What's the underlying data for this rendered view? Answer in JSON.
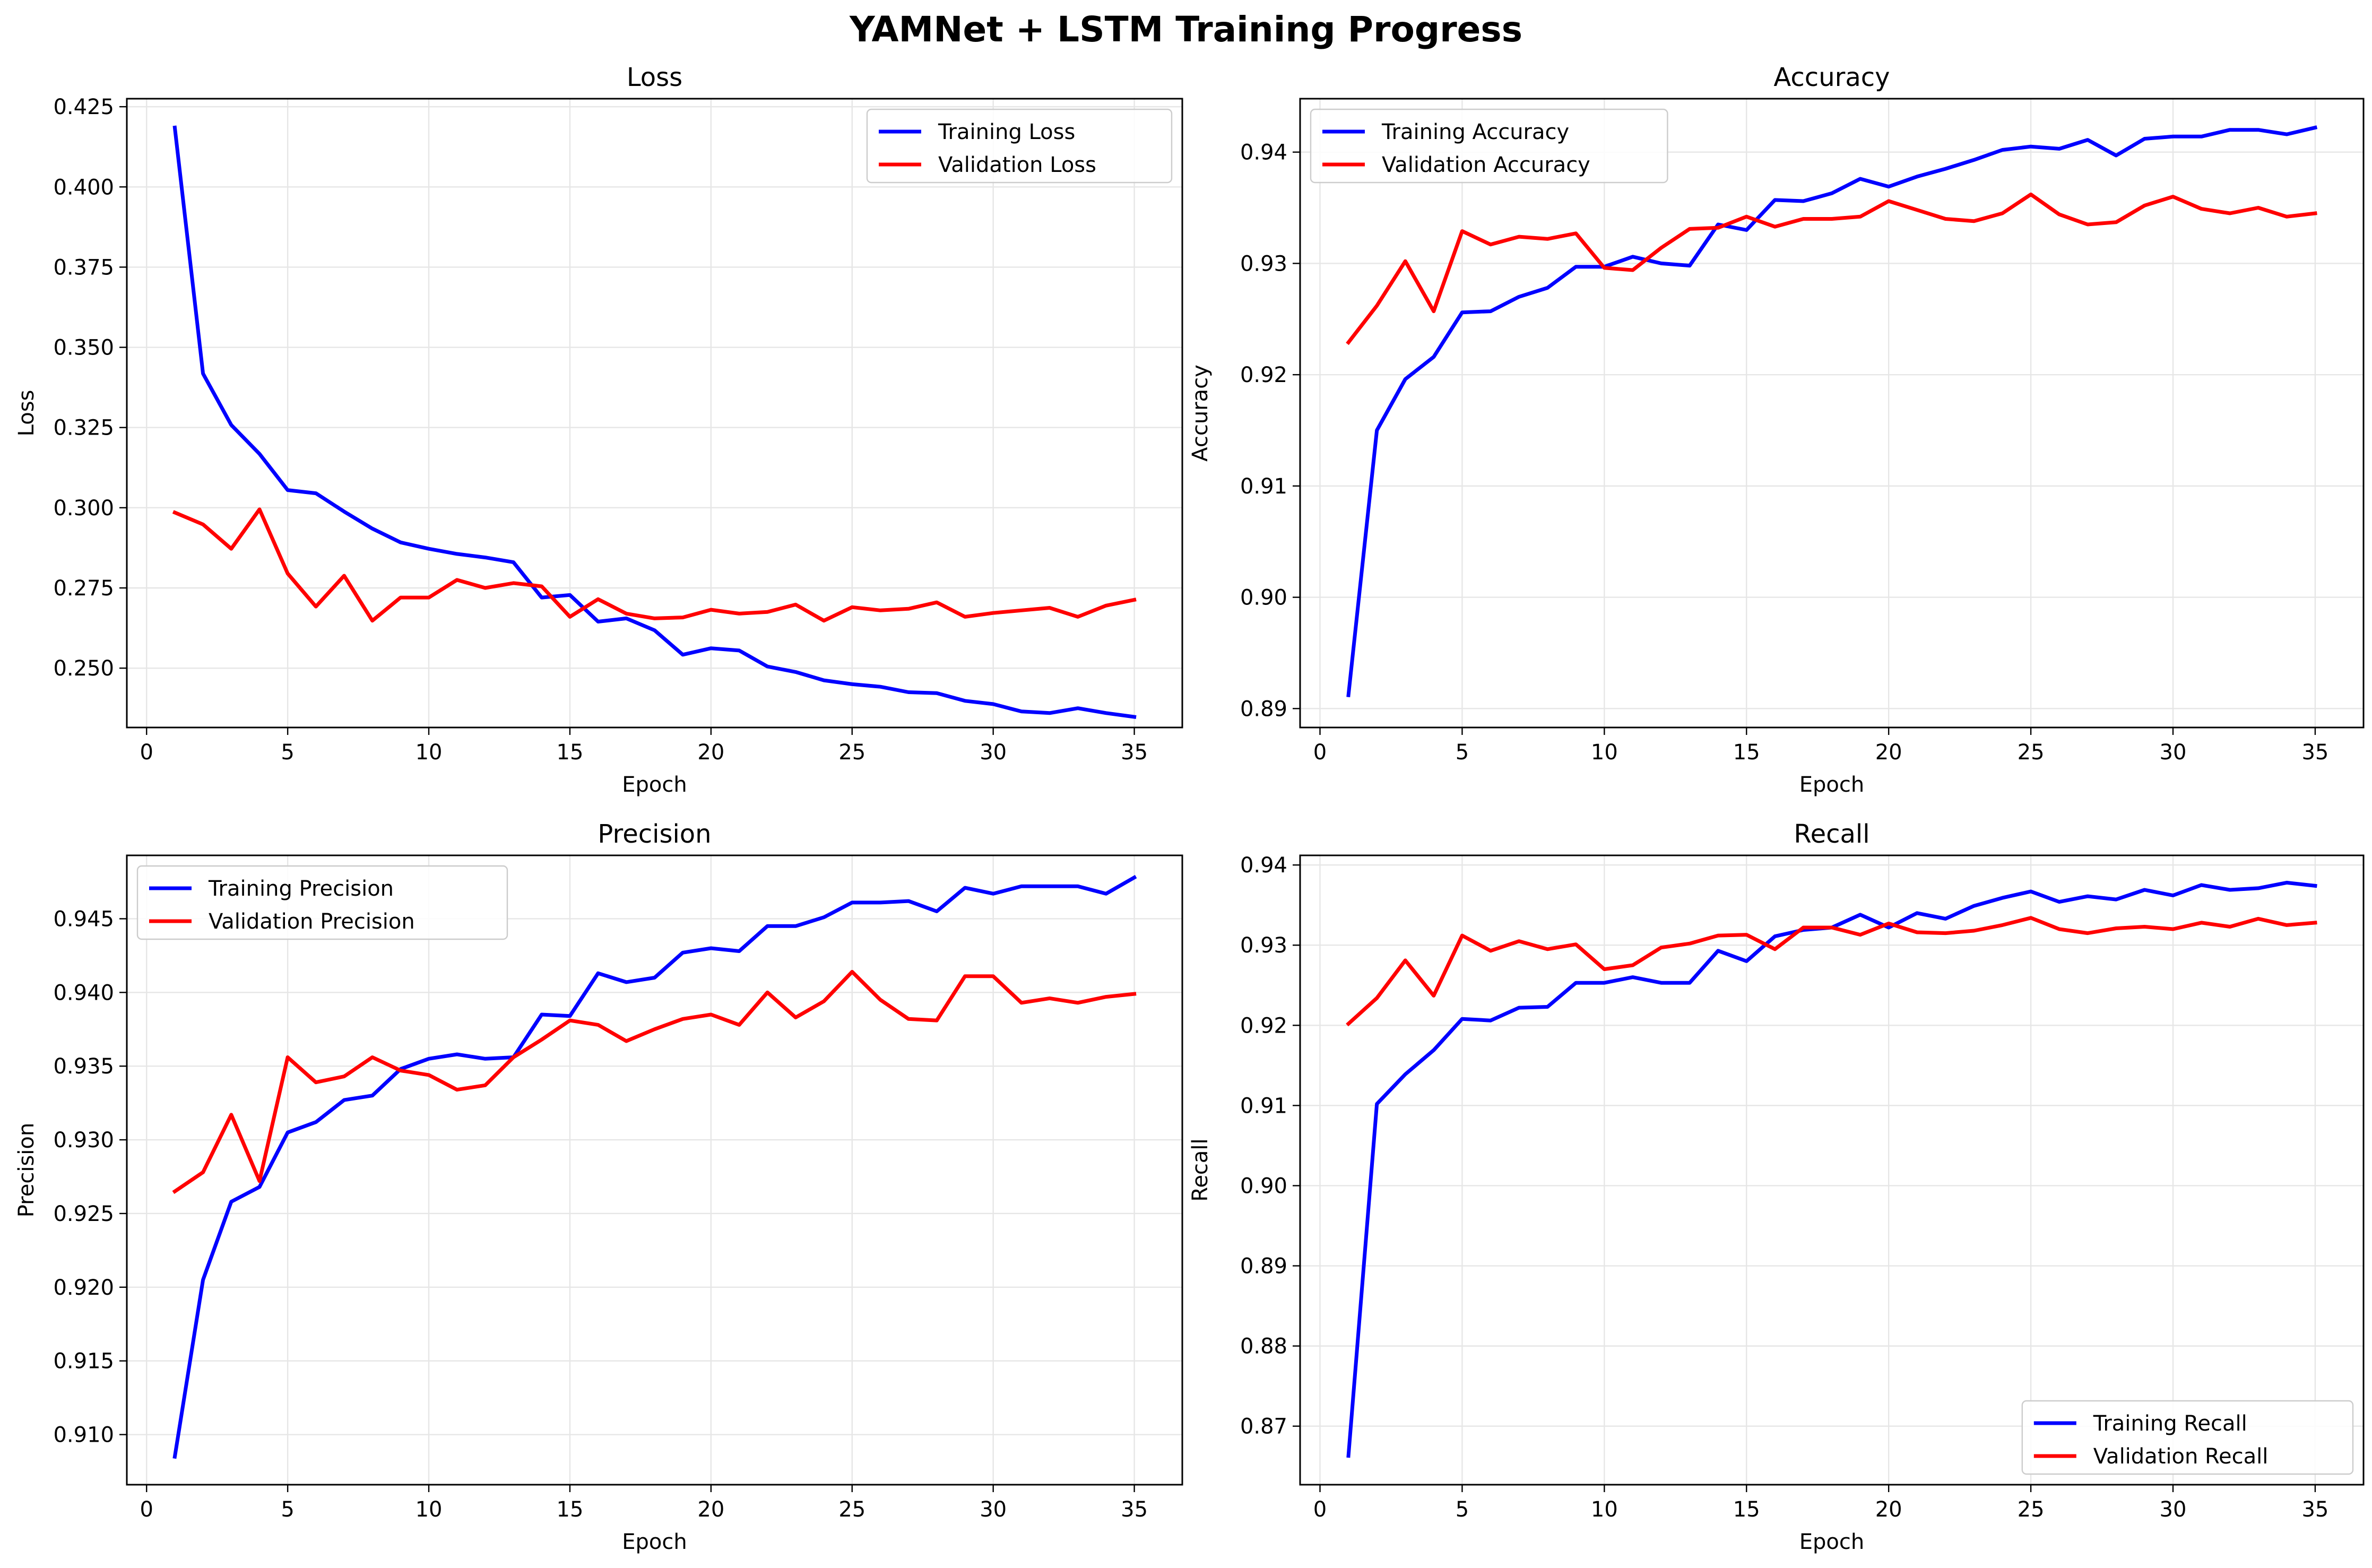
{
  "figure": {
    "title": "YAMNet + LSTM Training Progress"
  },
  "colors": {
    "training": "#0000ff",
    "validation": "#ff0000",
    "grid": "#e6e6e6",
    "axis": "#000000"
  },
  "chart_data": [
    {
      "type": "line",
      "title": "Loss",
      "xlabel": "Epoch",
      "ylabel": "Loss",
      "xlim": [
        -0.7,
        36.7
      ],
      "ylim": [
        0.2315,
        0.4275
      ],
      "xticks": [
        0,
        5,
        10,
        15,
        20,
        25,
        30,
        35
      ],
      "yticks": [
        0.25,
        0.275,
        0.3,
        0.325,
        0.35,
        0.375,
        0.4,
        0.425
      ],
      "ytick_labels": [
        "0.250",
        "0.275",
        "0.300",
        "0.325",
        "0.350",
        "0.375",
        "0.400",
        "0.425"
      ],
      "grid": true,
      "legend_position": "upper right",
      "x": [
        1,
        2,
        3,
        4,
        5,
        6,
        7,
        8,
        9,
        10,
        11,
        12,
        13,
        14,
        15,
        16,
        17,
        18,
        19,
        20,
        21,
        22,
        23,
        24,
        25,
        26,
        27,
        28,
        29,
        30,
        31,
        32,
        33,
        34,
        35
      ],
      "series": [
        {
          "name": "Training Loss",
          "color": "#0000ff",
          "values": [
            0.4185,
            0.3418,
            0.3258,
            0.3168,
            0.3055,
            0.3045,
            0.2988,
            0.2935,
            0.2892,
            0.2872,
            0.2856,
            0.2845,
            0.283,
            0.272,
            0.2728,
            0.2645,
            0.2655,
            0.2618,
            0.2542,
            0.2562,
            0.2555,
            0.2505,
            0.2488,
            0.2462,
            0.245,
            0.2442,
            0.2425,
            0.2422,
            0.2398,
            0.2388,
            0.2365,
            0.236,
            0.2375,
            0.236,
            0.2348
          ]
        },
        {
          "name": "Validation Loss",
          "color": "#ff0000",
          "values": [
            0.2985,
            0.2948,
            0.2872,
            0.2995,
            0.2795,
            0.2692,
            0.2788,
            0.2648,
            0.272,
            0.272,
            0.2775,
            0.275,
            0.2765,
            0.2755,
            0.266,
            0.2715,
            0.267,
            0.2655,
            0.2658,
            0.2682,
            0.267,
            0.2675,
            0.2698,
            0.2648,
            0.269,
            0.268,
            0.2685,
            0.2705,
            0.266,
            0.2672,
            0.268,
            0.2688,
            0.266,
            0.2695,
            0.2713
          ]
        }
      ]
    },
    {
      "type": "line",
      "title": "Accuracy",
      "xlabel": "Epoch",
      "ylabel": "Accuracy",
      "xlim": [
        -0.7,
        36.7
      ],
      "ylim": [
        0.8883,
        0.9448
      ],
      "xticks": [
        0,
        5,
        10,
        15,
        20,
        25,
        30,
        35
      ],
      "yticks": [
        0.89,
        0.9,
        0.91,
        0.92,
        0.93,
        0.94
      ],
      "ytick_labels": [
        "0.89",
        "0.90",
        "0.91",
        "0.92",
        "0.93",
        "0.94"
      ],
      "grid": true,
      "legend_position": "upper left",
      "x": [
        1,
        2,
        3,
        4,
        5,
        6,
        7,
        8,
        9,
        10,
        11,
        12,
        13,
        14,
        15,
        16,
        17,
        18,
        19,
        20,
        21,
        22,
        23,
        24,
        25,
        26,
        27,
        28,
        29,
        30,
        31,
        32,
        33,
        34,
        35
      ],
      "series": [
        {
          "name": "Training Accuracy",
          "color": "#0000ff",
          "values": [
            0.8912,
            0.915,
            0.9196,
            0.9216,
            0.9256,
            0.9257,
            0.927,
            0.9278,
            0.9297,
            0.9297,
            0.9306,
            0.93,
            0.9298,
            0.9335,
            0.933,
            0.9357,
            0.9356,
            0.9363,
            0.9376,
            0.9369,
            0.9378,
            0.9385,
            0.9393,
            0.9402,
            0.9405,
            0.9403,
            0.9411,
            0.9397,
            0.9412,
            0.9414,
            0.9414,
            0.942,
            0.942,
            0.9416,
            0.9422
          ]
        },
        {
          "name": "Validation Accuracy",
          "color": "#ff0000",
          "values": [
            0.9229,
            0.9262,
            0.9302,
            0.9257,
            0.9329,
            0.9317,
            0.9324,
            0.9322,
            0.9327,
            0.9296,
            0.9294,
            0.9314,
            0.9331,
            0.9332,
            0.9342,
            0.9333,
            0.934,
            0.934,
            0.9342,
            0.9356,
            0.9348,
            0.934,
            0.9338,
            0.9345,
            0.9362,
            0.9344,
            0.9335,
            0.9337,
            0.9352,
            0.936,
            0.9349,
            0.9345,
            0.935,
            0.9342,
            0.9345
          ]
        }
      ]
    },
    {
      "type": "line",
      "title": "Precision",
      "xlabel": "Epoch",
      "ylabel": "Precision",
      "xlim": [
        -0.7,
        36.7
      ],
      "ylim": [
        0.9066,
        0.9493
      ],
      "xticks": [
        0,
        5,
        10,
        15,
        20,
        25,
        30,
        35
      ],
      "yticks": [
        0.91,
        0.915,
        0.92,
        0.925,
        0.93,
        0.935,
        0.94,
        0.945
      ],
      "ytick_labels": [
        "0.910",
        "0.915",
        "0.920",
        "0.925",
        "0.930",
        "0.935",
        "0.940",
        "0.945"
      ],
      "grid": true,
      "legend_position": "upper left",
      "x": [
        1,
        2,
        3,
        4,
        5,
        6,
        7,
        8,
        9,
        10,
        11,
        12,
        13,
        14,
        15,
        16,
        17,
        18,
        19,
        20,
        21,
        22,
        23,
        24,
        25,
        26,
        27,
        28,
        29,
        30,
        31,
        32,
        33,
        34,
        35
      ],
      "series": [
        {
          "name": "Training Precision",
          "color": "#0000ff",
          "values": [
            0.9085,
            0.9205,
            0.9258,
            0.9268,
            0.9305,
            0.9312,
            0.9327,
            0.933,
            0.9348,
            0.9355,
            0.9358,
            0.9355,
            0.9356,
            0.9385,
            0.9384,
            0.9413,
            0.9407,
            0.941,
            0.9427,
            0.943,
            0.9428,
            0.9445,
            0.9445,
            0.9451,
            0.9461,
            0.9461,
            0.9462,
            0.9455,
            0.9471,
            0.9467,
            0.9472,
            0.9472,
            0.9472,
            0.9467,
            0.9478
          ]
        },
        {
          "name": "Validation Precision",
          "color": "#ff0000",
          "values": [
            0.9265,
            0.9278,
            0.9317,
            0.9272,
            0.9356,
            0.9339,
            0.9343,
            0.9356,
            0.9347,
            0.9344,
            0.9334,
            0.9337,
            0.9356,
            0.9368,
            0.9381,
            0.9378,
            0.9367,
            0.9375,
            0.9382,
            0.9385,
            0.9378,
            0.94,
            0.9383,
            0.9394,
            0.9414,
            0.9395,
            0.9382,
            0.9381,
            0.9411,
            0.9411,
            0.9393,
            0.9396,
            0.9393,
            0.9397,
            0.9399
          ]
        }
      ]
    },
    {
      "type": "line",
      "title": "Recall",
      "xlabel": "Epoch",
      "ylabel": "Recall",
      "xlim": [
        -0.7,
        36.7
      ],
      "ylim": [
        0.8627,
        0.9412
      ],
      "xticks": [
        0,
        5,
        10,
        15,
        20,
        25,
        30,
        35
      ],
      "yticks": [
        0.87,
        0.88,
        0.89,
        0.9,
        0.91,
        0.92,
        0.93,
        0.94
      ],
      "ytick_labels": [
        "0.87",
        "0.88",
        "0.89",
        "0.90",
        "0.91",
        "0.92",
        "0.93",
        "0.94"
      ],
      "grid": true,
      "legend_position": "lower right",
      "x": [
        1,
        2,
        3,
        4,
        5,
        6,
        7,
        8,
        9,
        10,
        11,
        12,
        13,
        14,
        15,
        16,
        17,
        18,
        19,
        20,
        21,
        22,
        23,
        24,
        25,
        26,
        27,
        28,
        29,
        30,
        31,
        32,
        33,
        34,
        35
      ],
      "series": [
        {
          "name": "Training Recall",
          "color": "#0000ff",
          "values": [
            0.8663,
            0.9102,
            0.9139,
            0.9169,
            0.9208,
            0.9206,
            0.9222,
            0.9223,
            0.9253,
            0.9253,
            0.926,
            0.9253,
            0.9253,
            0.9293,
            0.928,
            0.9311,
            0.9319,
            0.9322,
            0.9338,
            0.9322,
            0.934,
            0.9333,
            0.9349,
            0.9359,
            0.9367,
            0.9354,
            0.9361,
            0.9357,
            0.9369,
            0.9362,
            0.9375,
            0.9369,
            0.9371,
            0.9378,
            0.9374
          ]
        },
        {
          "name": "Validation Recall",
          "color": "#ff0000",
          "values": [
            0.9202,
            0.9234,
            0.9281,
            0.9237,
            0.9312,
            0.9293,
            0.9305,
            0.9295,
            0.9301,
            0.927,
            0.9275,
            0.9297,
            0.9302,
            0.9312,
            0.9313,
            0.9295,
            0.9322,
            0.9322,
            0.9313,
            0.9327,
            0.9316,
            0.9315,
            0.9318,
            0.9325,
            0.9334,
            0.932,
            0.9315,
            0.9321,
            0.9323,
            0.932,
            0.9328,
            0.9323,
            0.9333,
            0.9325,
            0.9328
          ]
        }
      ]
    }
  ]
}
